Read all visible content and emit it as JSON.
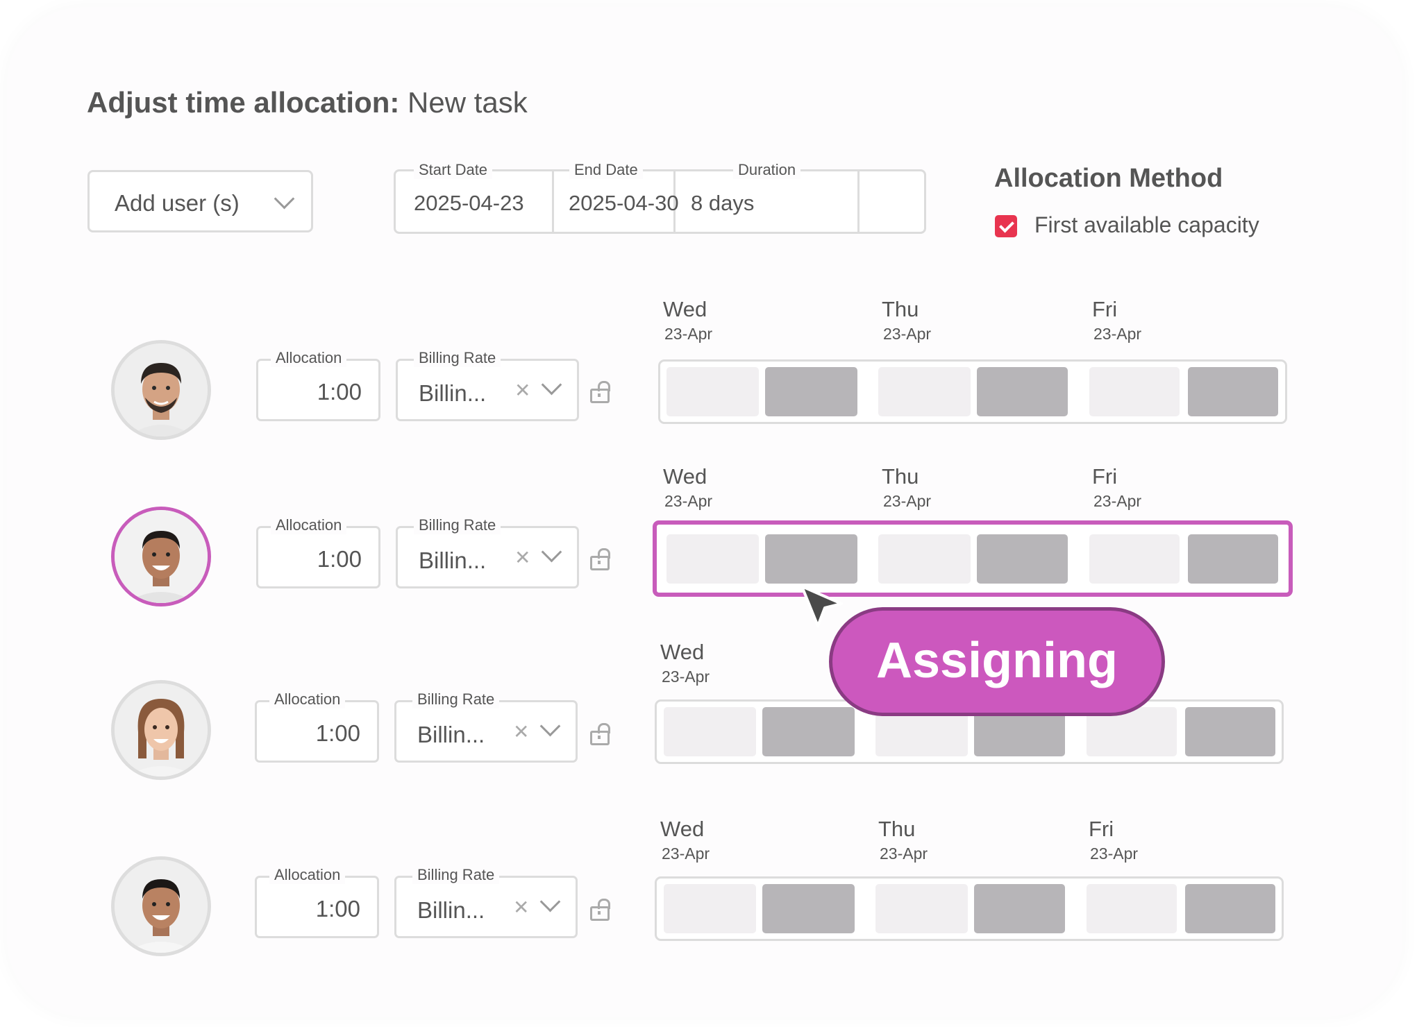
{
  "header": {
    "title_bold": "Adjust time allocation:",
    "title_rest": "New task"
  },
  "add_user": {
    "label": "Add user (s)"
  },
  "dates": {
    "start_label": "Start Date",
    "start_value": "2025-04-23",
    "end_label": "End Date",
    "end_value": "2025-04-30",
    "duration_label": "Duration",
    "duration_value": "8 days"
  },
  "allocation_method": {
    "title": "Allocation Method",
    "option_label": "First available capacity",
    "option_checked": true
  },
  "rows": [
    {
      "allocation_label": "Allocation",
      "allocation_value": "1:00",
      "billing_label": "Billing Rate",
      "billing_value": "Billin...",
      "days": [
        {
          "name": "Wed",
          "date": "23-Apr"
        },
        {
          "name": "Thu",
          "date": "23-Apr"
        },
        {
          "name": "Fri",
          "date": "23-Apr"
        }
      ]
    },
    {
      "allocation_label": "Allocation",
      "allocation_value": "1:00",
      "billing_label": "Billing Rate",
      "billing_value": "Billin...",
      "active": true,
      "days": [
        {
          "name": "Wed",
          "date": "23-Apr"
        },
        {
          "name": "Thu",
          "date": "23-Apr"
        },
        {
          "name": "Fri",
          "date": "23-Apr"
        }
      ]
    },
    {
      "allocation_label": "Allocation",
      "allocation_value": "1:00",
      "billing_label": "Billing Rate",
      "billing_value": "Billin...",
      "days": [
        {
          "name": "Wed",
          "date": "23-Apr"
        }
      ]
    },
    {
      "allocation_label": "Allocation",
      "allocation_value": "1:00",
      "billing_label": "Billing Rate",
      "billing_value": "Billin...",
      "days": [
        {
          "name": "Wed",
          "date": "23-Apr"
        },
        {
          "name": "Thu",
          "date": "23-Apr"
        },
        {
          "name": "Fri",
          "date": "23-Apr"
        }
      ]
    }
  ],
  "overlay": {
    "assigning_label": "Assigning"
  },
  "colors": {
    "accent": "#c85cbb",
    "pill": "#cc58be",
    "checkbox": "#e8344f",
    "slot_light": "#f1eff1",
    "slot_dark": "#b7b5b8"
  },
  "icons": [
    "chevron-down-icon",
    "checkbox-checked-icon",
    "clear-x-icon",
    "unlock-icon",
    "cursor-arrow-icon"
  ]
}
